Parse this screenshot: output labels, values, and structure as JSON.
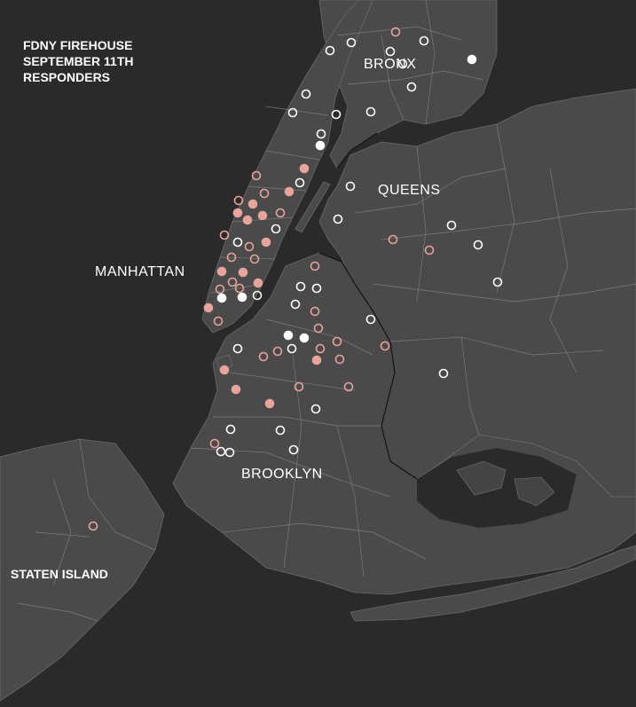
{
  "title_lines": [
    "FDNY FIREHOUSE",
    "SEPTEMBER 11TH",
    "RESPONDERS"
  ],
  "boroughs": {
    "bronx": "BRONX",
    "queens": "QUEENS",
    "manhattan": "MANHATTAN",
    "brooklyn": "BROOKLYN",
    "staten_island": "STATEN ISLAND"
  },
  "colors": {
    "water": "#2a2a2a",
    "land": "#4a4a4a",
    "marker_white": "#ffffff",
    "marker_pink": "#e8a39b"
  }
}
